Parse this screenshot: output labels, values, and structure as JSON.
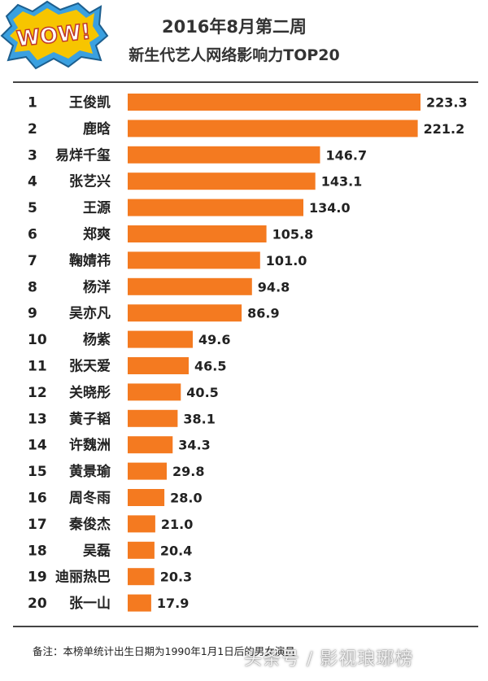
{
  "logo": {
    "text": "WOW!"
  },
  "header": {
    "title_line1": "2016年8月第二周",
    "title_line2": "新生代艺人网络影响力TOP20"
  },
  "colors": {
    "bar": "#f47a20",
    "logo_yellow": "#f7c500",
    "logo_blue": "#3aa0e0",
    "divider": "#444444"
  },
  "chart_data": {
    "type": "bar",
    "orientation": "horizontal",
    "title": "新生代艺人网络影响力TOP20",
    "ranks": [
      "1",
      "2",
      "3",
      "4",
      "5",
      "6",
      "7",
      "8",
      "9",
      "10",
      "11",
      "12",
      "13",
      "14",
      "15",
      "16",
      "17",
      "18",
      "19",
      "20"
    ],
    "categories": [
      "王俊凯",
      "鹿晗",
      "易烊千玺",
      "张艺兴",
      "王源",
      "郑爽",
      "鞠婧祎",
      "杨洋",
      "吴亦凡",
      "杨紫",
      "张天爱",
      "关晓彤",
      "黄子韬",
      "许魏洲",
      "黄景瑜",
      "周冬雨",
      "秦俊杰",
      "吴磊",
      "迪丽热巴",
      "张一山"
    ],
    "values": [
      223.3,
      221.2,
      146.7,
      143.1,
      134.0,
      105.8,
      101.0,
      94.8,
      86.9,
      49.6,
      46.5,
      40.5,
      38.1,
      34.3,
      29.8,
      28.0,
      21.0,
      20.4,
      20.3,
      17.9
    ],
    "value_labels": [
      "223.3",
      "221.2",
      "146.7",
      "143.1",
      "134.0",
      "105.8",
      "101.0",
      "94.8",
      "86.9",
      "49.6",
      "46.5",
      "40.5",
      "38.1",
      "34.3",
      "29.8",
      "28.0",
      "21.0",
      "20.4",
      "20.3",
      "17.9"
    ],
    "xlabel": "",
    "ylabel": "",
    "grid": false,
    "legend": "none"
  },
  "footer": {
    "note": "备注：本榜单统计出生日期为1990年1月1日后的男女演员",
    "watermark": "头条号 / 影视琅琊榜"
  }
}
